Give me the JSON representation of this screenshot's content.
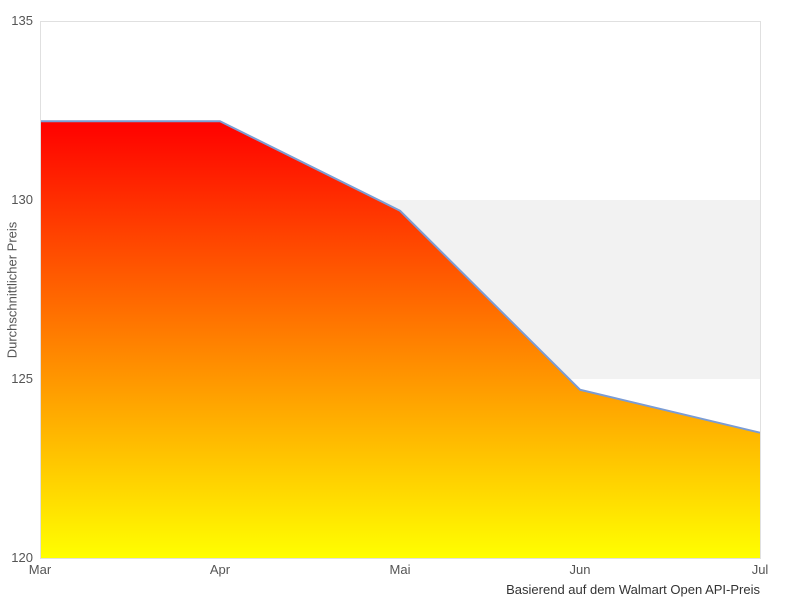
{
  "chart_data": {
    "type": "area",
    "categories": [
      "Mar",
      "Apr",
      "Mai",
      "Jun",
      "Jul"
    ],
    "values": [
      132.2,
      132.2,
      129.7,
      124.7,
      123.5
    ],
    "title": "",
    "xlabel": "",
    "ylabel": "Durchschnittlicher Preis",
    "caption": "Basierend auf dem Walmart Open API-Preis",
    "ylim": [
      120,
      135
    ],
    "yticks": [
      120,
      125,
      130,
      135
    ],
    "band": {
      "from": 125,
      "to": 130,
      "color": "#f2f2f2"
    },
    "legend": "none",
    "grid": "plot-border-only",
    "colors": {
      "line": "#7b9cd4",
      "fill_top": "#ff0000",
      "fill_bottom": "#ffff00",
      "border": "#e0e0e0",
      "tick_label": "#555555",
      "caption": "#333333",
      "background": "#ffffff"
    }
  }
}
